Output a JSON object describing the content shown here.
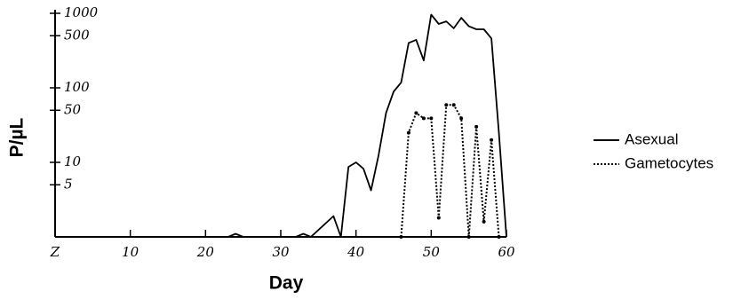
{
  "chart_data": {
    "type": "line",
    "x_label": "Day",
    "y_label": "P/µL",
    "log_y": true,
    "grid": false,
    "legend_position": "right",
    "xlim": [
      0,
      60
    ],
    "xticks": [
      {
        "value": 0,
        "label": "Z"
      },
      10,
      20,
      30,
      40,
      50,
      60
    ],
    "ylim": [
      1,
      1000
    ],
    "yticks": [
      5,
      10,
      50,
      100,
      500,
      1000
    ],
    "series": [
      {
        "name": "Asexual",
        "color": "#000000",
        "style": "solid",
        "x": [
          0,
          23,
          24,
          25,
          32,
          33,
          34,
          37,
          38,
          39,
          40,
          41,
          42,
          43,
          44,
          45,
          46,
          47,
          48,
          49,
          50,
          51,
          52,
          53,
          54,
          55,
          56,
          57,
          58,
          59,
          60
        ],
        "values": [
          1,
          1,
          1.1,
          1,
          1,
          1.1,
          1,
          1.9,
          1,
          8.7,
          10,
          8.2,
          4.2,
          12.5,
          46,
          89,
          118,
          400,
          440,
          233,
          960,
          720,
          780,
          630,
          870,
          670,
          610,
          610,
          460,
          25,
          1
        ]
      },
      {
        "name": "Gametocytes",
        "color": "#000000",
        "style": "dotted",
        "x": [
          46,
          47,
          48,
          49,
          50,
          51,
          52,
          53,
          54,
          55,
          56,
          57,
          58,
          59
        ],
        "values": [
          1,
          25,
          46,
          39,
          39,
          1.8,
          59,
          59,
          39,
          1,
          30,
          1.6,
          20,
          1
        ]
      }
    ]
  }
}
